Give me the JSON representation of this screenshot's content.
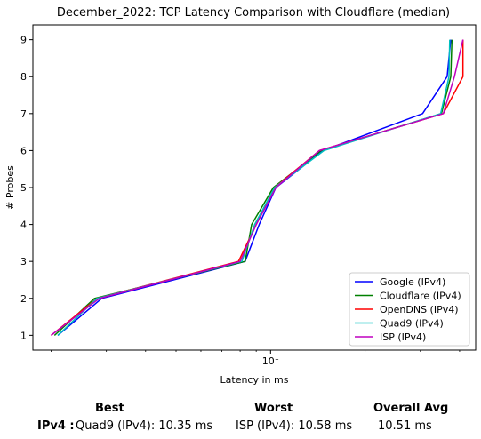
{
  "chart_data": {
    "type": "line",
    "title": "December_2022: TCP Latency Comparison with Cloudflare (median)",
    "xlabel": "Latency in ms",
    "ylabel": "# Probes",
    "xscale": "log",
    "xlim": [
      1.75,
      45
    ],
    "ylim": [
      0.6,
      9.4
    ],
    "x_ticks": [
      10
    ],
    "x_tick_labels": [
      "10"
    ],
    "y_ticks": [
      1,
      2,
      3,
      4,
      5,
      6,
      7,
      8,
      9
    ],
    "legend_position": "lower right",
    "series": [
      {
        "name": "Google (IPv4)",
        "color": "#0000ff",
        "points": [
          [
            2.1,
            1
          ],
          [
            2.9,
            2
          ],
          [
            8.3,
            3
          ],
          [
            9.2,
            4
          ],
          [
            10.4,
            5
          ],
          [
            14.7,
            6
          ],
          [
            30.5,
            7
          ],
          [
            36.5,
            8
          ],
          [
            37.5,
            9
          ]
        ]
      },
      {
        "name": "Cloudflare (IPv4)",
        "color": "#008000",
        "points": [
          [
            2.05,
            1
          ],
          [
            2.75,
            2
          ],
          [
            8.3,
            3
          ],
          [
            8.7,
            4
          ],
          [
            10.2,
            5
          ],
          [
            14.5,
            6
          ],
          [
            35.0,
            7
          ],
          [
            37.5,
            8
          ],
          [
            37.8,
            9
          ]
        ]
      },
      {
        "name": "OpenDNS (IPv4)",
        "color": "#ff0000",
        "points": [
          [
            2.0,
            1
          ],
          [
            2.8,
            2
          ],
          [
            7.9,
            3
          ],
          [
            9.0,
            4
          ],
          [
            10.3,
            5
          ],
          [
            14.3,
            6
          ],
          [
            35.5,
            7
          ],
          [
            41.0,
            8
          ],
          [
            41.0,
            9
          ]
        ]
      },
      {
        "name": "Quad9 (IPv4)",
        "color": "#00bfbf",
        "points": [
          [
            2.1,
            1
          ],
          [
            2.8,
            2
          ],
          [
            8.1,
            3
          ],
          [
            8.9,
            4
          ],
          [
            10.3,
            5
          ],
          [
            14.8,
            6
          ],
          [
            34.8,
            7
          ],
          [
            37.0,
            8
          ],
          [
            37.2,
            9
          ]
        ]
      },
      {
        "name": "ISP (IPv4)",
        "color": "#bf00bf",
        "points": [
          [
            2.0,
            1
          ],
          [
            2.85,
            2
          ],
          [
            8.0,
            3
          ],
          [
            9.0,
            4
          ],
          [
            10.4,
            5
          ],
          [
            14.3,
            6
          ],
          [
            35.5,
            7
          ],
          [
            38.5,
            8
          ],
          [
            41.0,
            9
          ]
        ]
      }
    ]
  },
  "summary": {
    "best_header": "Best",
    "worst_header": "Worst",
    "avg_header": "Overall Avg",
    "row_label": "IPv4 :",
    "best_value": "Quad9 (IPv4): 10.35 ms",
    "worst_value": "ISP (IPv4): 10.58 ms",
    "avg_value": "10.51 ms"
  }
}
